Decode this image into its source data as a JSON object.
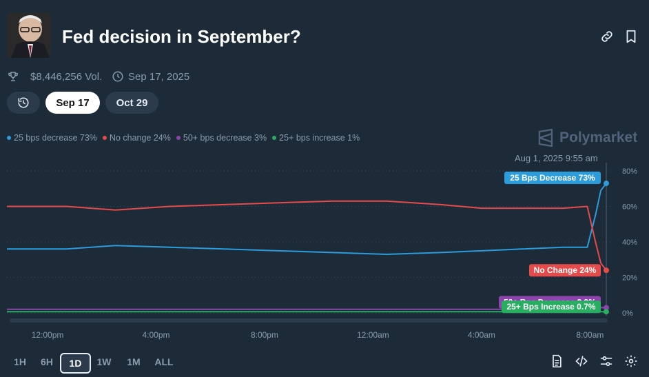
{
  "market": {
    "title": "Fed decision in September?",
    "volume": "$8,446,256 Vol.",
    "end_date": "Sep 17, 2025"
  },
  "tabs": {
    "sep": "Sep 17",
    "oct": "Oct 29"
  },
  "brand": "Polymarket",
  "hover_timestamp": "Aug 1, 2025 9:55 am",
  "legend": [
    {
      "label": "25 bps decrease 73%",
      "color": "#2d9cdb"
    },
    {
      "label": "No change 24%",
      "color": "#e64b4b"
    },
    {
      "label": "50+ bps decrease 3%",
      "color": "#8e44ad"
    },
    {
      "label": "25+ bps increase 1%",
      "color": "#27ae60"
    }
  ],
  "timeframes": [
    "1H",
    "6H",
    "1D",
    "1W",
    "1M",
    "ALL"
  ],
  "active_timeframe": "1D",
  "icons": {
    "link": "link-icon",
    "bookmark": "bookmark-icon",
    "trophy": "trophy-icon",
    "clock": "clock-icon",
    "history": "history-icon",
    "document": "document-icon",
    "embed": "code-icon",
    "sliders": "sliders-icon",
    "settings": "gear-icon"
  },
  "chart_data": {
    "type": "line",
    "x_tick_labels": [
      "12:00pm",
      "4:00pm",
      "8:00pm",
      "12:00am",
      "4:00am",
      "8:00am"
    ],
    "y_tick_labels": [
      "0%",
      "20%",
      "40%",
      "60%",
      "80%"
    ],
    "ylim": [
      0,
      85
    ],
    "x_hours": [
      0,
      2.2,
      4,
      6,
      8,
      10,
      12,
      14,
      16,
      17.5,
      19,
      20.5,
      21.4,
      21.7,
      21.9,
      22.1
    ],
    "series": [
      {
        "name": "25 Bps Decrease",
        "color": "#2d9cdb",
        "end_label": "25 Bps Decrease 73%",
        "values": [
          36,
          36,
          38,
          37,
          36,
          35,
          34,
          33,
          34,
          35,
          36,
          37,
          37,
          55,
          69,
          73
        ]
      },
      {
        "name": "No Change",
        "color": "#e64b4b",
        "end_label": "No Change 24%",
        "values": [
          60,
          60,
          58,
          60,
          61,
          62,
          63,
          63,
          61,
          59,
          59,
          59,
          60,
          40,
          28,
          24
        ]
      },
      {
        "name": "50+ Bps Decrease",
        "color": "#8e44ad",
        "end_label": "50+ Bps Decrease 2.9%",
        "values": [
          2,
          2,
          2,
          2,
          2,
          2,
          2,
          2,
          2,
          2,
          2,
          2,
          2,
          2.5,
          3,
          2.9
        ]
      },
      {
        "name": "25+ Bps Increase",
        "color": "#27ae60",
        "end_label": "25+ Bps Increase 0.7%",
        "values": [
          0.7,
          0.7,
          0.7,
          0.7,
          0.7,
          0.7,
          0.7,
          0.7,
          0.7,
          0.7,
          0.7,
          0.7,
          0.7,
          0.7,
          0.7,
          0.7
        ]
      }
    ],
    "x_tick_hours": [
      1.5,
      5.5,
      9.5,
      13.5,
      17.5,
      21.5
    ],
    "grid": true
  }
}
